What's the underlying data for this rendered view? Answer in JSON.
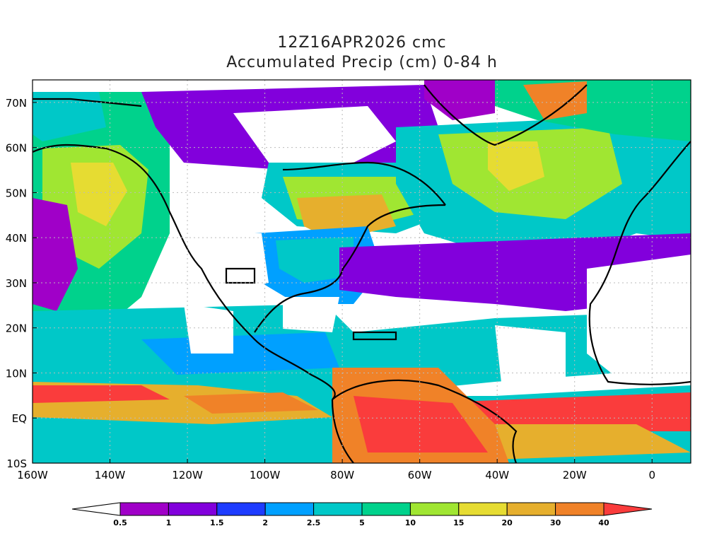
{
  "title_line1": "12Z16APR2026 cmc",
  "title_line2": "Accumulated Precip (cm) 0-84 h",
  "map": {
    "extent": {
      "lon": [
        -160,
        10
      ],
      "lat": [
        -10,
        75
      ]
    },
    "lat_labels": [
      "70N",
      "60N",
      "50N",
      "40N",
      "30N",
      "20N",
      "10N",
      "EQ",
      "10S"
    ],
    "lat_values": [
      70,
      60,
      50,
      40,
      30,
      20,
      10,
      0,
      -10
    ],
    "lon_labels": [
      "160W",
      "140W",
      "120W",
      "100W",
      "80W",
      "60W",
      "40W",
      "20W",
      "0"
    ],
    "lon_values": [
      -160,
      -140,
      -120,
      -100,
      -80,
      -60,
      -40,
      -20,
      0
    ],
    "grid": true
  },
  "colorbar": {
    "levels": [
      "0.5",
      "1",
      "1.5",
      "2",
      "2.5",
      "5",
      "10",
      "15",
      "20",
      "30",
      "40"
    ],
    "colors": [
      "#ffffff",
      "#a000c8",
      "#8200dc",
      "#1e3cff",
      "#00a0ff",
      "#00c8c8",
      "#00d28c",
      "#a0e632",
      "#e6dc32",
      "#e6af2d",
      "#f08228",
      "#fa3c3c"
    ]
  }
}
